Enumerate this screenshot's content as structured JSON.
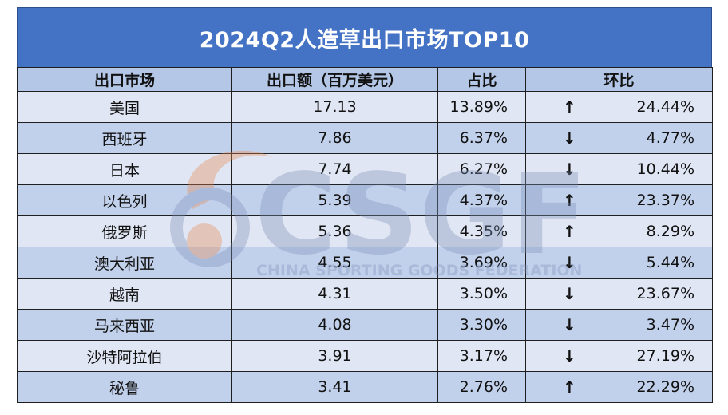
{
  "title": "2024Q2人造草出口市场TOP10",
  "watermark": {
    "logo_text": "CSGF",
    "tagline": "CHINA SPORTING GOODS FEDERATION"
  },
  "colors": {
    "header": "#4472C4",
    "column_header": "#B4C7E7",
    "row_light": "#D9E1F2",
    "row_dark": "#B4C7E7"
  },
  "table": {
    "columns": [
      "出口市场",
      "出口额（百万美元）",
      "占比",
      "环比"
    ],
    "rows": [
      {
        "market": "美国",
        "amount": "17.13",
        "share": "13.89%",
        "direction": "up",
        "arrow": "↑",
        "change": "24.44%"
      },
      {
        "market": "西班牙",
        "amount": "7.86",
        "share": "6.37%",
        "direction": "down",
        "arrow": "↓",
        "change": "4.77%"
      },
      {
        "market": "日本",
        "amount": "7.74",
        "share": "6.27%",
        "direction": "down",
        "arrow": "↓",
        "change": "10.44%"
      },
      {
        "market": "以色列",
        "amount": "5.39",
        "share": "4.37%",
        "direction": "up",
        "arrow": "↑",
        "change": "23.37%"
      },
      {
        "market": "俄罗斯",
        "amount": "5.36",
        "share": "4.35%",
        "direction": "up",
        "arrow": "↑",
        "change": "8.29%"
      },
      {
        "market": "澳大利亚",
        "amount": "4.55",
        "share": "3.69%",
        "direction": "down",
        "arrow": "↓",
        "change": "5.44%"
      },
      {
        "market": "越南",
        "amount": "4.31",
        "share": "3.50%",
        "direction": "down",
        "arrow": "↓",
        "change": "23.67%"
      },
      {
        "market": "马来西亚",
        "amount": "4.08",
        "share": "3.30%",
        "direction": "down",
        "arrow": "↓",
        "change": "3.47%"
      },
      {
        "market": "沙特阿拉伯",
        "amount": "3.91",
        "share": "3.17%",
        "direction": "down",
        "arrow": "↓",
        "change": "27.19%"
      },
      {
        "market": "秘鲁",
        "amount": "3.41",
        "share": "2.76%",
        "direction": "up",
        "arrow": "↑",
        "change": "22.29%"
      }
    ]
  },
  "chart_data": {
    "type": "table",
    "title": "2024Q2人造草出口市场TOP10",
    "columns": [
      "出口市场",
      "出口额（百万美元）",
      "占比",
      "环比"
    ],
    "categories": [
      "美国",
      "西班牙",
      "日本",
      "以色列",
      "俄罗斯",
      "澳大利亚",
      "越南",
      "马来西亚",
      "沙特阿拉伯",
      "秘鲁"
    ],
    "series": [
      {
        "name": "出口额（百万美元）",
        "values": [
          17.13,
          7.86,
          7.74,
          5.39,
          5.36,
          4.55,
          4.31,
          4.08,
          3.91,
          3.41
        ]
      },
      {
        "name": "占比",
        "values": [
          13.89,
          6.37,
          6.27,
          4.37,
          4.35,
          3.69,
          3.5,
          3.3,
          3.17,
          2.76
        ]
      },
      {
        "name": "环比",
        "values": [
          24.44,
          -4.77,
          -10.44,
          23.37,
          8.29,
          -5.44,
          -23.67,
          -3.47,
          -27.19,
          22.29
        ]
      }
    ]
  }
}
